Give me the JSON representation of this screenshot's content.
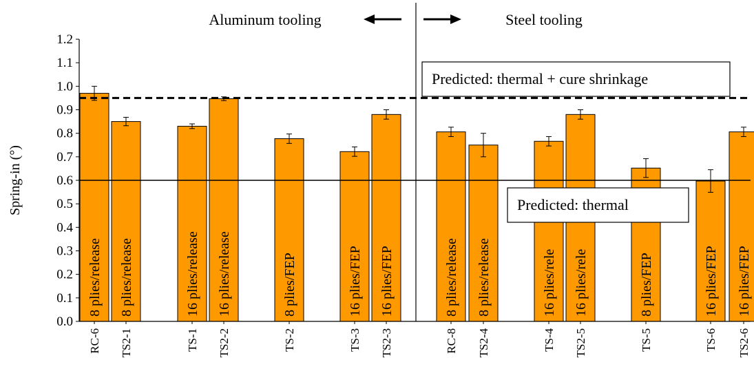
{
  "chart_data": {
    "type": "bar",
    "title": "",
    "xlabel": "",
    "ylabel": "Spring-in (°)",
    "ylim": [
      0,
      1.2
    ],
    "yticks": [
      "0.0",
      "0.1",
      "0.2",
      "0.3",
      "0.4",
      "0.5",
      "0.6",
      "0.7",
      "0.8",
      "0.9",
      "1.0",
      "1.1",
      "1.2"
    ],
    "grid": false,
    "bar_color": "#FF9900",
    "categories": [
      "RC-6",
      "TS2-1",
      "TS-1",
      "TS2-2",
      "TS-2",
      "TS-3",
      "TS2-3",
      "RC-8",
      "TS2-4",
      "TS-4",
      "TS2-5",
      "TS-5",
      "TS-6",
      "TS2-6"
    ],
    "values": [
      0.97,
      0.85,
      0.83,
      0.947,
      0.777,
      0.722,
      0.88,
      0.806,
      0.75,
      0.766,
      0.88,
      0.652,
      0.597,
      0.806
    ],
    "error": [
      0.03,
      0.018,
      0.01,
      0.008,
      0.02,
      0.02,
      0.02,
      0.02,
      0.05,
      0.02,
      0.02,
      0.04,
      0.048,
      0.02
    ],
    "bar_labels": [
      "8 plies/release",
      "8 plies/release",
      "16 plies/release",
      "16 plies/release",
      "8 plies/FEP",
      "16 plies/FEP",
      "16 plies/FEP",
      "8 plies/release",
      "8 plies/release",
      "16 plies/rele",
      "16 plies/rele",
      "8 plies/FEP",
      "16 plies/FEP",
      "16 plies/FEP"
    ],
    "groups": {
      "aluminum": "Aluminum tooling",
      "steel": "Steel tooling"
    },
    "reference_lines": [
      {
        "label": "Predicted: thermal + cure shrinkage",
        "value": 0.95,
        "style": "dashed"
      },
      {
        "label": "Predicted: thermal",
        "value": 0.6,
        "style": "solid"
      }
    ]
  }
}
